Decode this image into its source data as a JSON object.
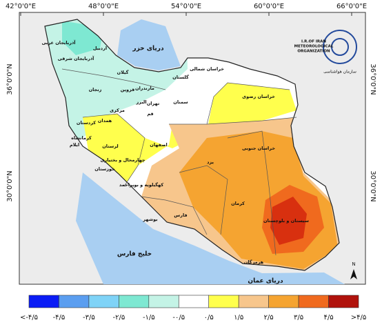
{
  "map": {
    "longitudes": [
      "42°0'0\"E",
      "48°0'0\"E",
      "54°0'0\"E",
      "60°0'0\"E",
      "66°0'0\"E"
    ],
    "latitudes": [
      "36°0'0\"N",
      "30°0'0\"N"
    ],
    "seas": [
      "دریای خزر",
      "خلیج فارس",
      "دریای عمان"
    ],
    "places": [
      "آذربایجان غربی",
      "آذربایجان شرقی",
      "اردبیل",
      "گیلان",
      "زنجان",
      "قزوین",
      "البرز",
      "تهران",
      "مازندران",
      "گلستان",
      "خراسان شمالی",
      "خراسان رضوی",
      "سمنان",
      "قم",
      "مرکزی",
      "همدان",
      "کردستان",
      "کرمانشاه",
      "ایلام",
      "لرستان",
      "خوزستان",
      "اصفهان",
      "چهارمحال و بختیاری",
      "کهگیلویه و بویراحمد",
      "بوشهر",
      "فارس",
      "یزد",
      "خراسان جنوبی",
      "کرمان",
      "هرمزگان",
      "سیستان و بلوچستان"
    ],
    "north": "N",
    "logo": {
      "line1": "I.R.OF IRAN",
      "line2": "METEOROLOGICAL",
      "line3": "ORGANIZATION",
      "persian": "سازمان هواشناسی"
    },
    "legend": {
      "labels": [
        "<-۴/۵",
        "-۴/۵",
        "-۳/۵",
        "-۲/۵",
        "-۱/۵",
        "-۰/۵",
        "۰/۵",
        "۱/۵",
        "۲/۵",
        "۳/۵",
        "۴/۵",
        ">۴/۵"
      ],
      "colors": [
        "#0a1cf5",
        "#5b9ef0",
        "#7fd3f7",
        "#7ee8d2",
        "#c4f3e6",
        "#ffffff",
        "#ffff4d",
        "#f7c68c",
        "#f5a431",
        "#f06a1e",
        "#b0120c"
      ]
    }
  }
}
